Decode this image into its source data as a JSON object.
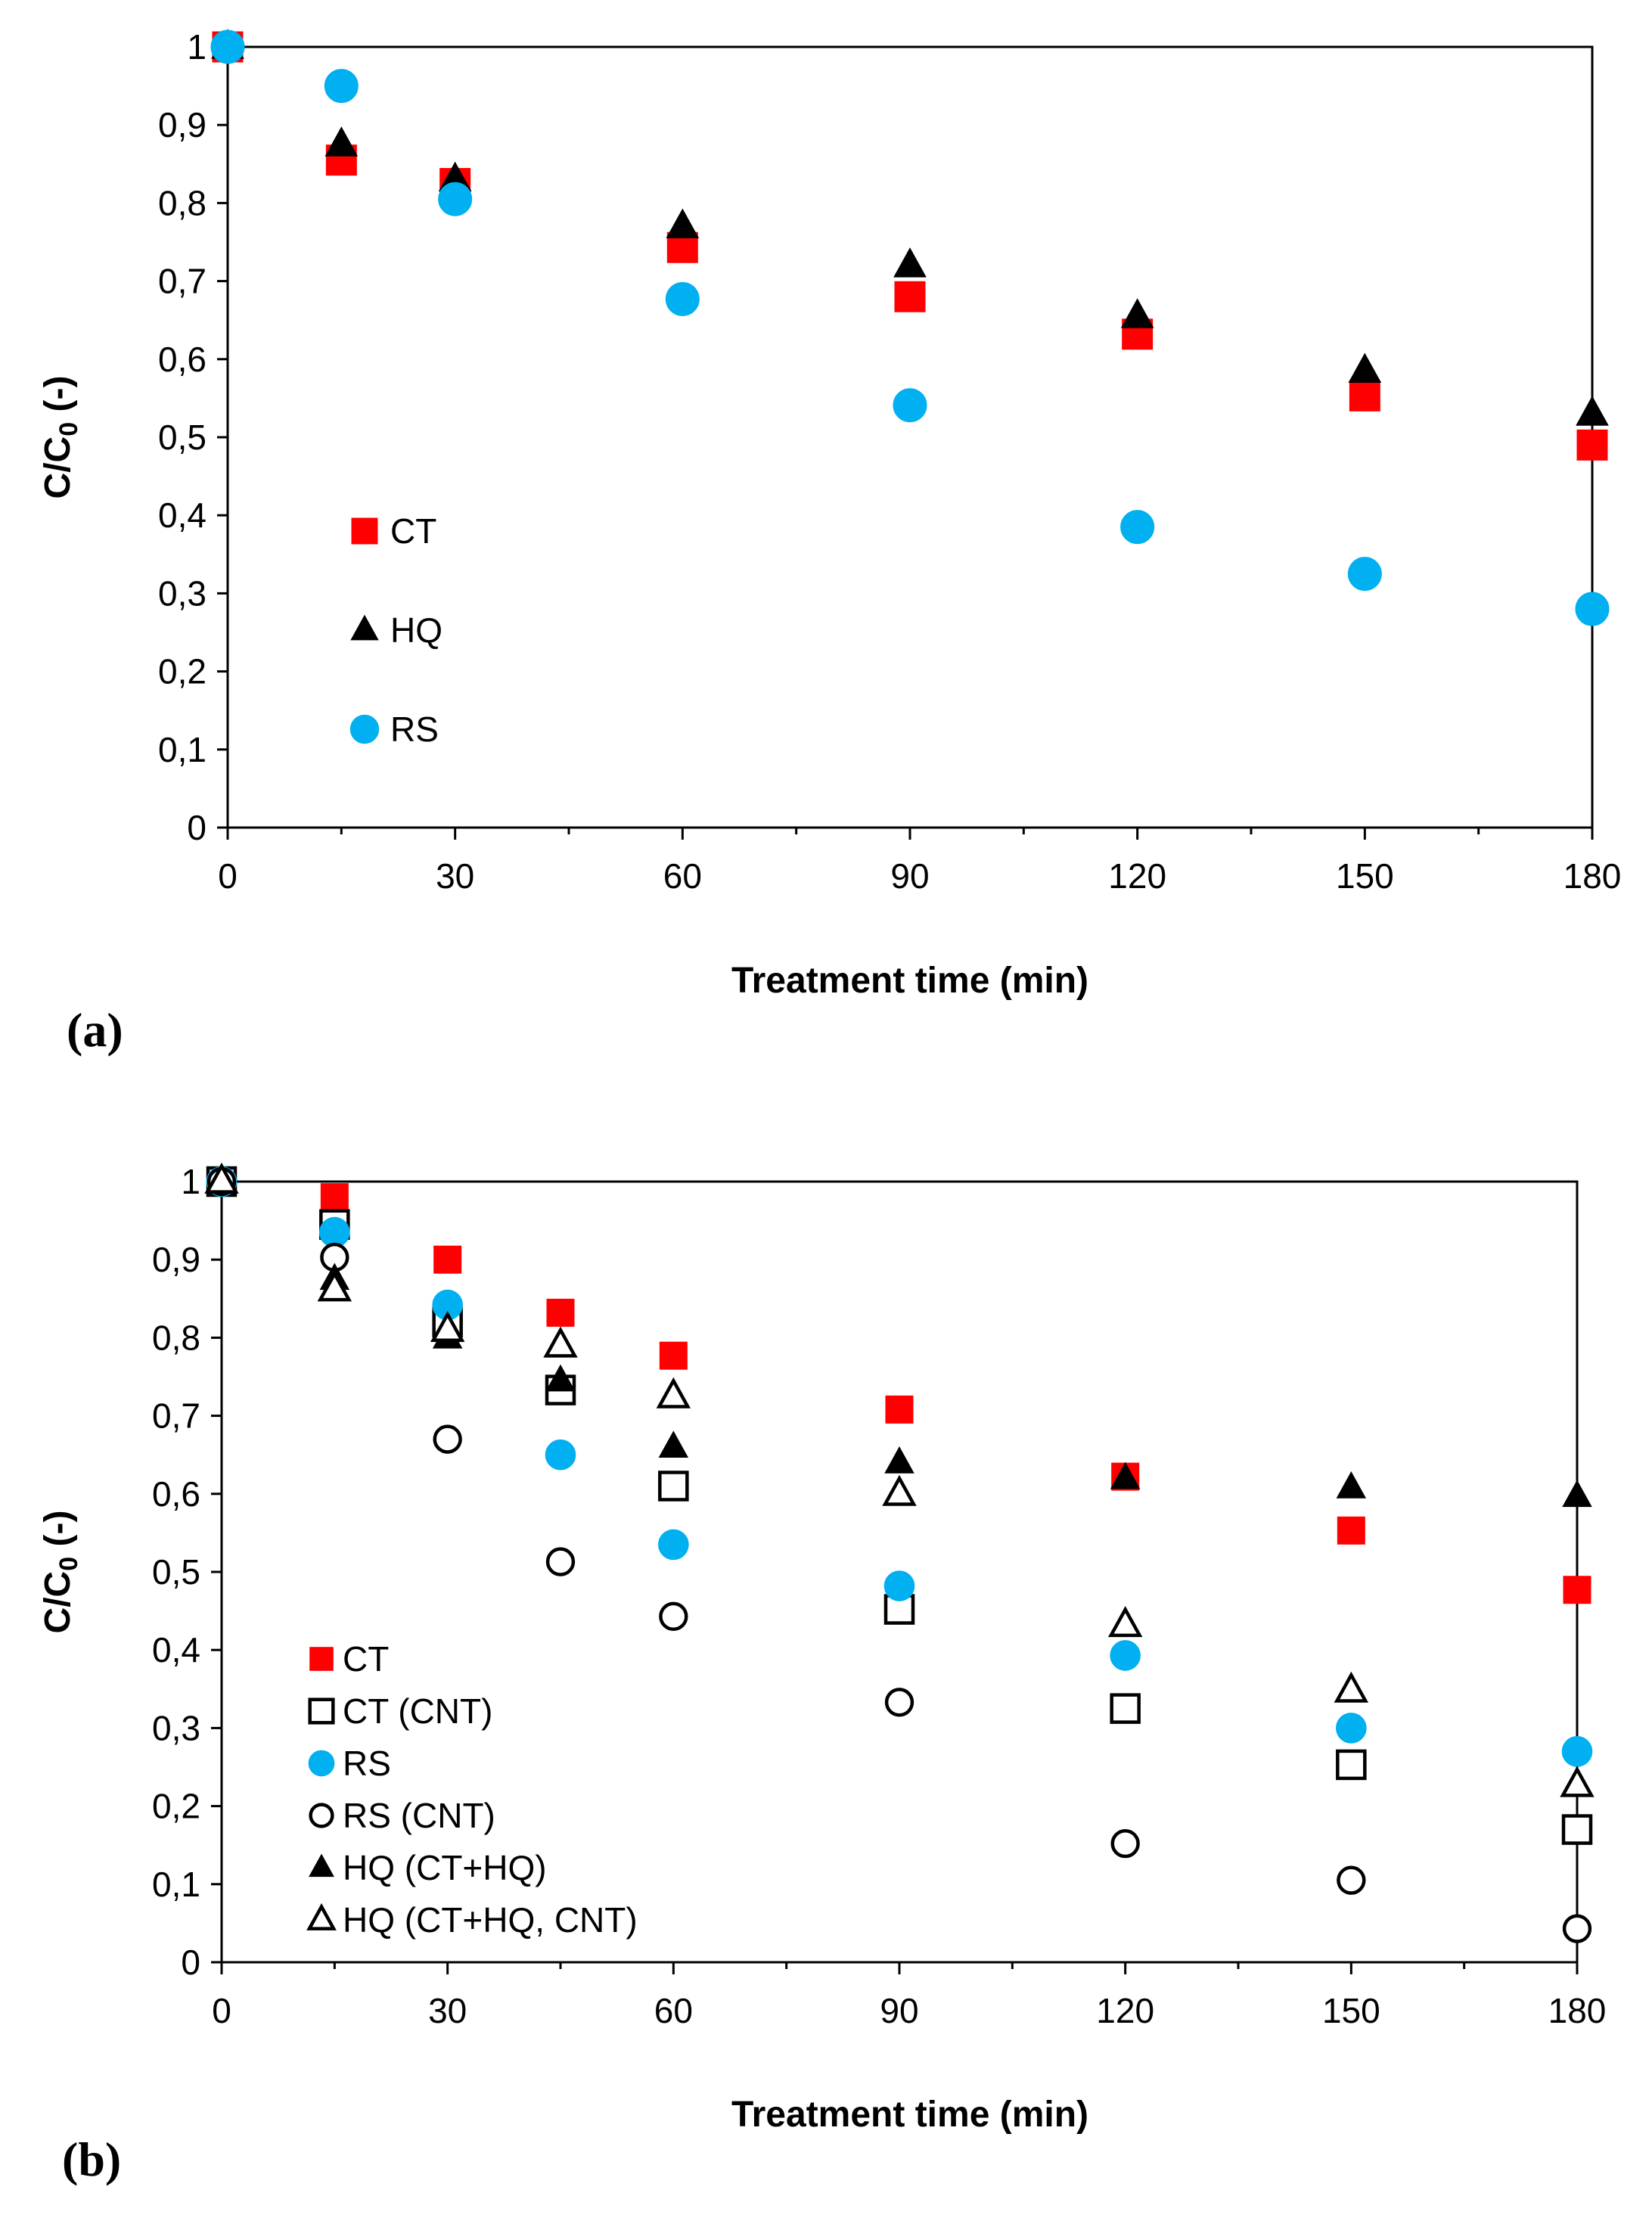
{
  "chart_data": [
    {
      "panel_label": "(a)",
      "type": "scatter",
      "xlabel": "Treatment time (min)",
      "ylabel_main": "C/C",
      "ylabel_sub": "0",
      "ylabel_tail": " (-)",
      "xlim": [
        0,
        180
      ],
      "ylim": [
        0,
        1
      ],
      "xticks": [
        0,
        30,
        60,
        90,
        120,
        150,
        180
      ],
      "xtick_labels": [
        "0",
        "30",
        "60",
        "90",
        "120",
        "150",
        "180"
      ],
      "yticks": [
        0,
        0.1,
        0.2,
        0.3,
        0.4,
        0.5,
        0.6,
        0.7,
        0.8,
        0.9,
        1
      ],
      "ytick_labels": [
        "0",
        "0,1",
        "0,2",
        "0,3",
        "0,4",
        "0,5",
        "0,6",
        "0,7",
        "0,8",
        "0,9",
        "1"
      ],
      "legend_position": "left-middle",
      "series": [
        {
          "name": "CT",
          "marker": "square",
          "filled": true,
          "color": "#ff0000",
          "x": [
            0,
            15,
            30,
            60,
            90,
            120,
            150,
            180
          ],
          "y": [
            1.0,
            0.855,
            0.825,
            0.743,
            0.68,
            0.632,
            0.553,
            0.49
          ]
        },
        {
          "name": "HQ",
          "marker": "triangle",
          "filled": true,
          "color": "#000000",
          "x": [
            0,
            15,
            30,
            60,
            90,
            120,
            150,
            180
          ],
          "y": [
            1.0,
            0.875,
            0.83,
            0.77,
            0.72,
            0.655,
            0.585,
            0.53
          ]
        },
        {
          "name": "RS",
          "marker": "circle",
          "filled": true,
          "color": "#00b0f0",
          "x": [
            0,
            15,
            30,
            60,
            90,
            120,
            150,
            180
          ],
          "y": [
            1.0,
            0.95,
            0.805,
            0.677,
            0.541,
            0.385,
            0.325,
            0.28
          ]
        }
      ]
    },
    {
      "panel_label": "(b)",
      "type": "scatter",
      "xlabel": "Treatment time (min)",
      "ylabel_main": "C/C",
      "ylabel_sub": "0",
      "ylabel_tail": " (-)",
      "xlim": [
        0,
        180
      ],
      "ylim": [
        0,
        1
      ],
      "xticks": [
        0,
        30,
        60,
        90,
        120,
        150,
        180
      ],
      "xtick_labels": [
        "0",
        "30",
        "60",
        "90",
        "120",
        "150",
        "180"
      ],
      "yticks": [
        0,
        0.1,
        0.2,
        0.3,
        0.4,
        0.5,
        0.6,
        0.7,
        0.8,
        0.9,
        1
      ],
      "ytick_labels": [
        "0",
        "0,1",
        "0,2",
        "0,3",
        "0,4",
        "0,5",
        "0,6",
        "0,7",
        "0,8",
        "0,9",
        "1"
      ],
      "legend_position": "bottom-left",
      "series": [
        {
          "name": "CT",
          "marker": "square",
          "filled": true,
          "color": "#ff0000",
          "x": [
            0,
            15,
            30,
            45,
            60,
            90,
            120,
            150,
            180
          ],
          "y": [
            1.0,
            0.98,
            0.9,
            0.832,
            0.777,
            0.708,
            0.622,
            0.553,
            0.477
          ]
        },
        {
          "name": "CT (CNT)",
          "marker": "square",
          "filled": false,
          "color": "#000000",
          "x": [
            0,
            15,
            30,
            45,
            60,
            90,
            120,
            150,
            180
          ],
          "y": [
            1.0,
            0.945,
            0.82,
            0.733,
            0.61,
            0.452,
            0.325,
            0.253,
            0.17
          ]
        },
        {
          "name": "RS",
          "marker": "circle",
          "filled": true,
          "color": "#00b0f0",
          "x": [
            0,
            15,
            30,
            45,
            60,
            90,
            120,
            150,
            180
          ],
          "y": [
            1.0,
            0.935,
            0.842,
            0.65,
            0.535,
            0.482,
            0.393,
            0.3,
            0.27
          ]
        },
        {
          "name": "RS (CNT)",
          "marker": "circle",
          "filled": false,
          "color": "#000000",
          "x": [
            0,
            15,
            30,
            45,
            60,
            90,
            120,
            150,
            180
          ],
          "y": [
            1.0,
            0.903,
            0.67,
            0.513,
            0.443,
            0.333,
            0.152,
            0.105,
            0.043
          ]
        },
        {
          "name": "HQ (CT+HQ)",
          "marker": "triangle",
          "filled": true,
          "color": "#000000",
          "x": [
            0,
            15,
            30,
            45,
            60,
            90,
            120,
            150,
            180
          ],
          "y": [
            1.0,
            0.875,
            0.8,
            0.745,
            0.66,
            0.64,
            0.62,
            0.608,
            0.597
          ]
        },
        {
          "name": "HQ (CT+HQ, CNT)",
          "marker": "triangle",
          "filled": false,
          "color": "#000000",
          "x": [
            0,
            15,
            30,
            45,
            60,
            90,
            120,
            150,
            180
          ],
          "y": [
            1.0,
            0.862,
            0.81,
            0.79,
            0.725,
            0.6,
            0.432,
            0.348,
            0.227
          ]
        }
      ]
    }
  ]
}
